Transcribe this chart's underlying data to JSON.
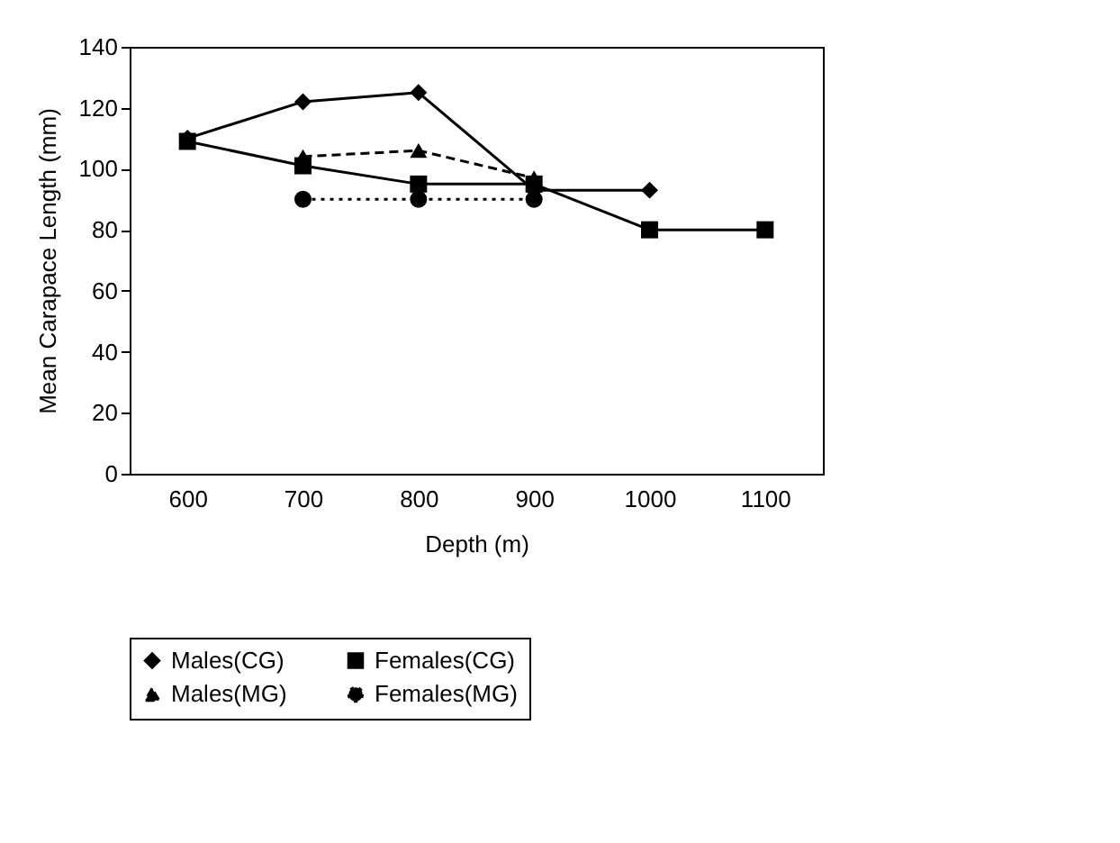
{
  "chart_data": {
    "type": "line",
    "xlabel": "Depth (m)",
    "ylabel": "Mean Carapace Length (mm)",
    "categories": [
      "600",
      "700",
      "800",
      "900",
      "1000",
      "1100"
    ],
    "ylim": [
      0,
      140
    ],
    "yticks": [
      0,
      20,
      40,
      60,
      80,
      100,
      120,
      140
    ],
    "grid": false,
    "legend": "bottom",
    "series": [
      {
        "name": "Males(CG)",
        "color": "#000000",
        "marker": "diamond",
        "line_style": "solid",
        "values": [
          110,
          122,
          125,
          93,
          93,
          null
        ]
      },
      {
        "name": "Females(CG)",
        "color": "#000000",
        "marker": "square",
        "line_style": "solid",
        "values": [
          109,
          101,
          95,
          95,
          80,
          80
        ]
      },
      {
        "name": "Males(MG)",
        "color": "#000000",
        "marker": "triangle",
        "line_style": "dashed",
        "values": [
          null,
          104,
          106,
          97,
          null,
          null
        ]
      },
      {
        "name": "Females(MG)",
        "color": "#000000",
        "marker": "circle",
        "line_style": "dotted",
        "values": [
          null,
          90,
          90,
          90,
          null,
          null
        ]
      }
    ]
  }
}
